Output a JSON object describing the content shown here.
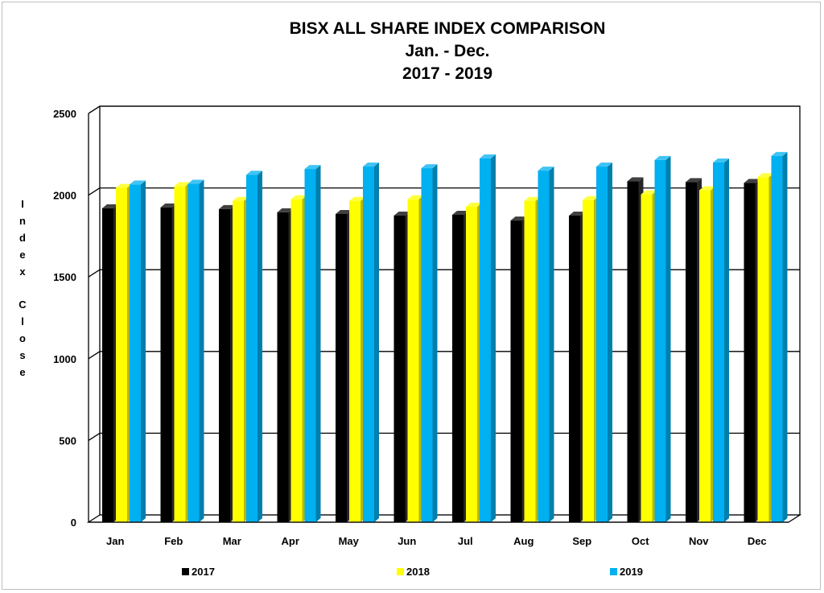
{
  "chart_data": {
    "type": "bar",
    "title": [
      "BISX ALL SHARE INDEX COMPARISON",
      "Jan. - Dec.",
      "2017 - 2019"
    ],
    "ylabel": "Index Close",
    "xlabel": "",
    "ylim": [
      0,
      2500
    ],
    "yticks": [
      0,
      500,
      1000,
      1500,
      2000,
      2500
    ],
    "grid": true,
    "legend_position": "bottom",
    "categories": [
      "Jan",
      "Feb",
      "Mar",
      "Apr",
      "May",
      "Jun",
      "Jul",
      "Aug",
      "Sep",
      "Oct",
      "Nov",
      "Dec"
    ],
    "series": [
      {
        "name": "2017",
        "color": "#000000",
        "values": [
          1920,
          1925,
          1915,
          1895,
          1885,
          1875,
          1880,
          1845,
          1875,
          2085,
          2080,
          2075
        ]
      },
      {
        "name": "2018",
        "color": "#ffff00",
        "values": [
          2045,
          2055,
          1965,
          1975,
          1965,
          1975,
          1930,
          1965,
          1970,
          2005,
          2030,
          2110
        ]
      },
      {
        "name": "2019",
        "color": "#00b0f0",
        "values": [
          2065,
          2070,
          2125,
          2160,
          2175,
          2165,
          2225,
          2150,
          2175,
          2215,
          2200,
          2240
        ]
      }
    ]
  }
}
